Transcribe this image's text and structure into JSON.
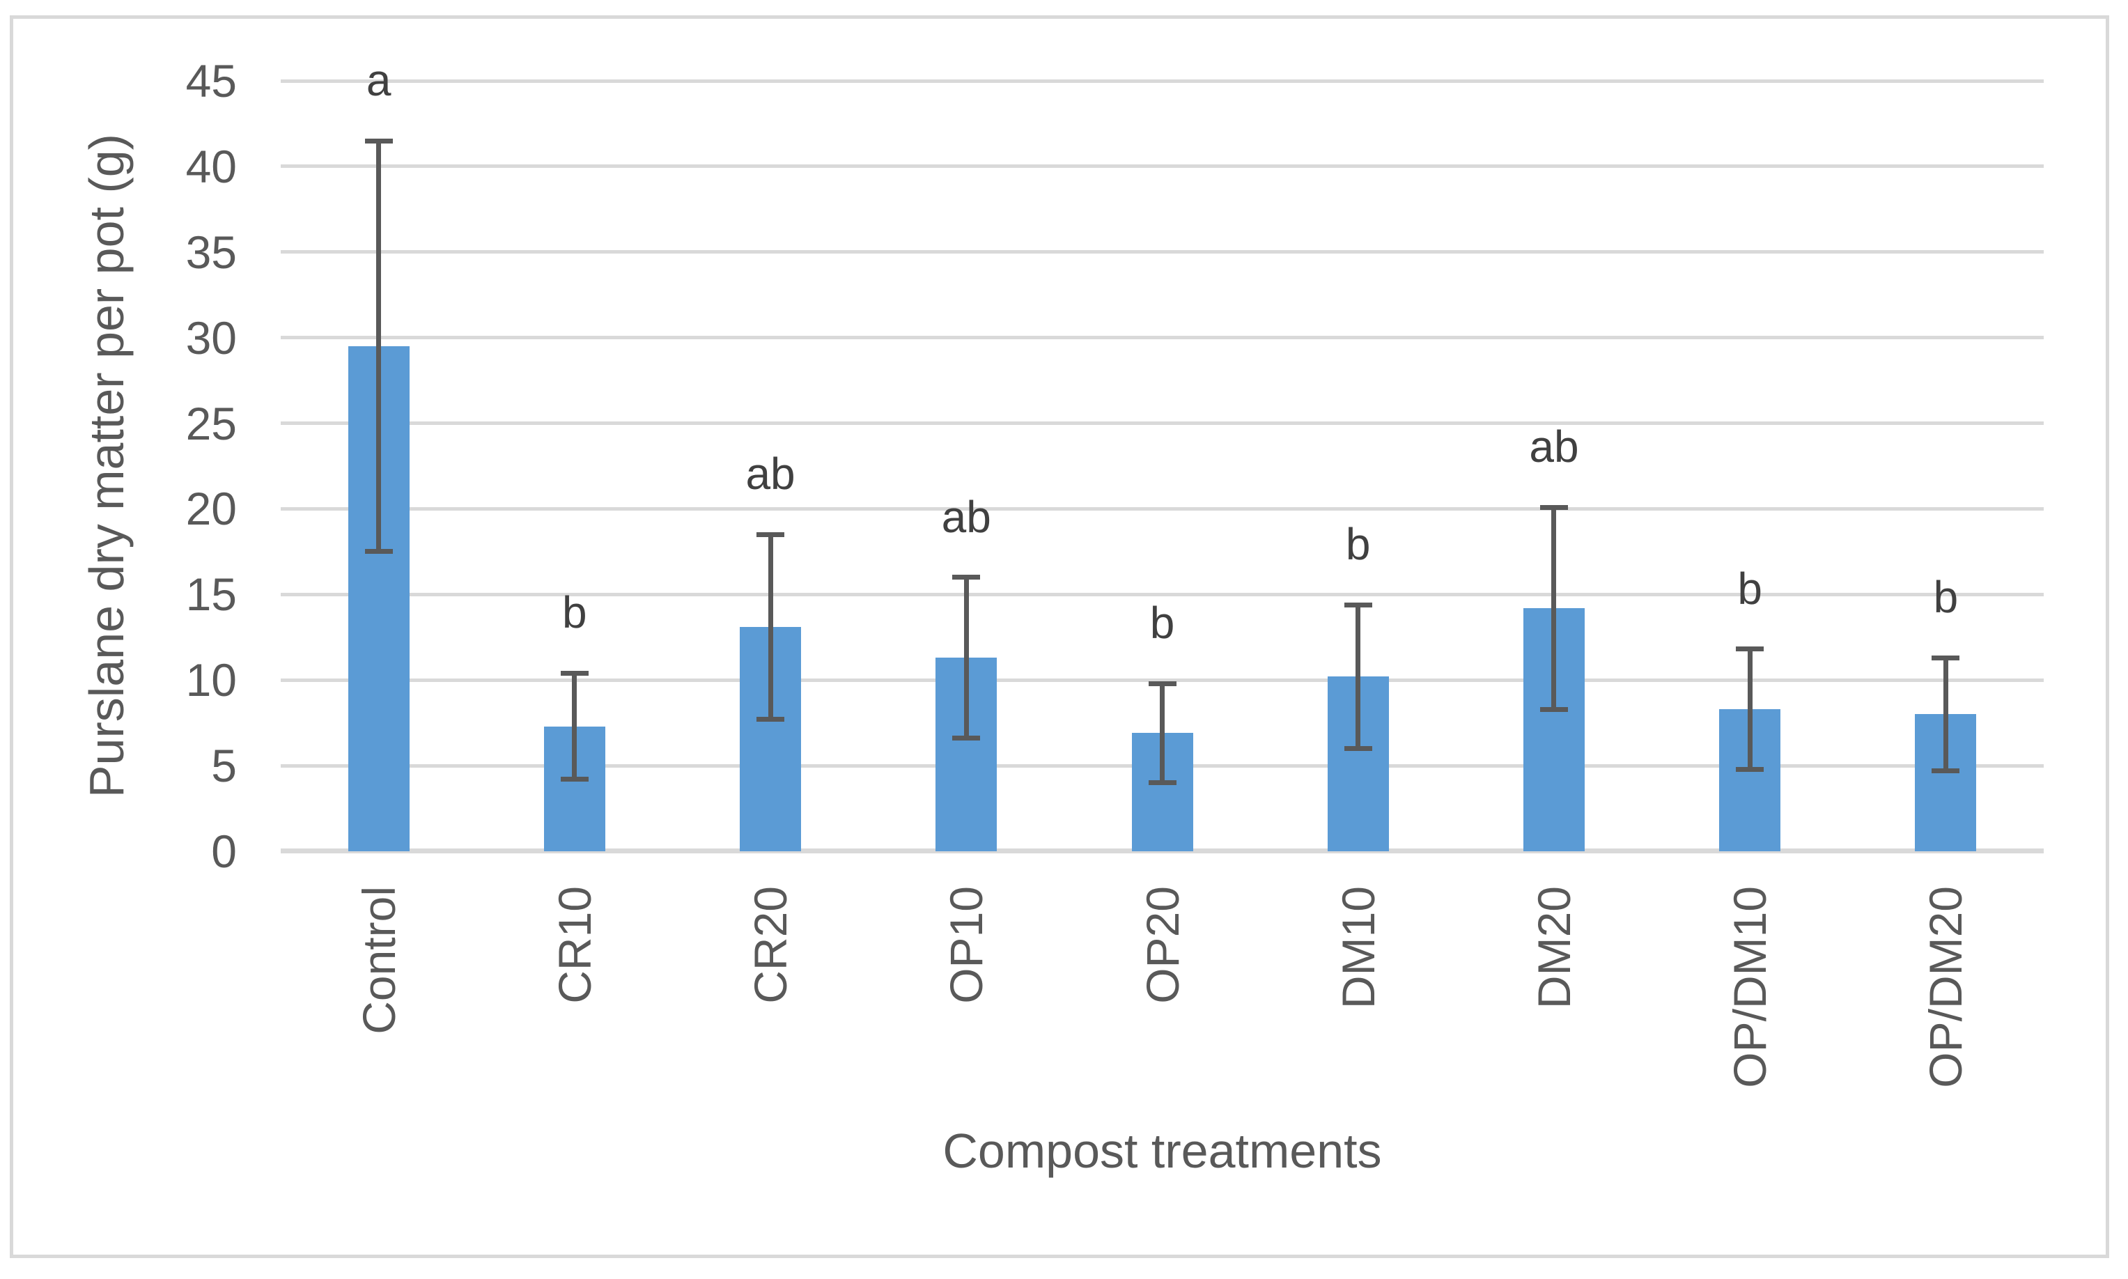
{
  "figure": {
    "background_color": "#FFFFFF",
    "frame_border_color": "#D9D9D9"
  },
  "chart_data": {
    "type": "bar",
    "title": "",
    "xlabel": "Compost treatments",
    "ylabel": "Purslane dry matter per pot (g)",
    "categories": [
      "Control",
      "CR10",
      "CR20",
      "OP10",
      "OP20",
      "DM10",
      "DM20",
      "OP/DM10",
      "OP/DM20"
    ],
    "values": [
      29.5,
      7.3,
      13.1,
      11.3,
      6.9,
      10.2,
      14.2,
      8.3,
      8.0
    ],
    "error_bars": [
      12.0,
      3.1,
      5.4,
      4.7,
      2.9,
      4.2,
      5.9,
      3.5,
      3.3
    ],
    "significance_letters": [
      "a",
      "b",
      "ab",
      "ab",
      "b",
      "b",
      "ab",
      "b",
      "b"
    ],
    "ylim": [
      0,
      45
    ],
    "yticks": [
      0,
      5,
      10,
      15,
      20,
      25,
      30,
      35,
      40,
      45
    ],
    "grid": true,
    "legend": "none",
    "bar_color": "#5B9BD5",
    "error_bar_color": "#595959",
    "letter_color": "#404040",
    "gridline_color": "#D9D9D9",
    "axis_text_color": "#595959"
  }
}
